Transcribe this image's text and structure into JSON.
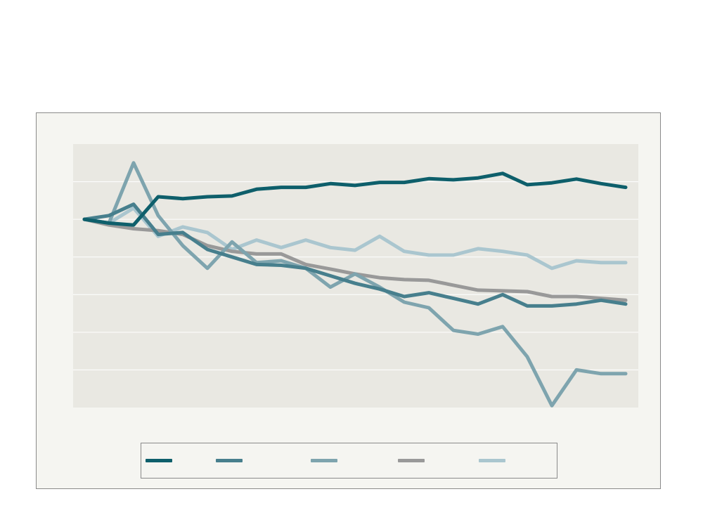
{
  "chart_data": {
    "type": "line",
    "title": "",
    "xlabel": "",
    "ylabel": "",
    "ylim": [
      -5,
      2
    ],
    "grid": true,
    "legend_placement": "bottom",
    "x": [
      1,
      2,
      3,
      4,
      5,
      6,
      7,
      8,
      9,
      10,
      11,
      12,
      13,
      14,
      15,
      16,
      17,
      18,
      19,
      20,
      21,
      22,
      23
    ],
    "series": [
      {
        "name": "",
        "color": "#0e5f6b",
        "values": [
          0.0,
          -0.1,
          -0.15,
          0.6,
          0.55,
          0.6,
          0.62,
          0.8,
          0.85,
          0.85,
          0.95,
          0.9,
          0.98,
          0.98,
          1.08,
          1.05,
          1.1,
          1.22,
          0.92,
          0.97,
          1.07,
          0.95,
          0.85
        ]
      },
      {
        "name": "",
        "color": "#477f8d",
        "values": [
          0.0,
          0.1,
          0.4,
          -0.4,
          -0.35,
          -0.8,
          -1.0,
          -1.2,
          -1.22,
          -1.3,
          -1.5,
          -1.7,
          -1.85,
          -2.05,
          -1.95,
          -2.1,
          -2.25,
          -2.0,
          -2.3,
          -2.3,
          -2.25,
          -2.15,
          -2.25
        ]
      },
      {
        "name": "",
        "color": "#7ea4ae",
        "values": [
          0.0,
          -0.1,
          1.5,
          0.1,
          -0.7,
          -1.3,
          -0.6,
          -1.15,
          -1.1,
          -1.3,
          -1.8,
          -1.45,
          -1.8,
          -2.2,
          -2.35,
          -2.95,
          -3.05,
          -2.85,
          -3.65,
          -4.95,
          -4.0,
          -4.1,
          -4.1
        ]
      },
      {
        "name": "",
        "color": "#999999",
        "values": [
          0.0,
          -0.15,
          -0.25,
          -0.3,
          -0.4,
          -0.7,
          -0.85,
          -0.92,
          -0.92,
          -1.2,
          -1.32,
          -1.45,
          -1.55,
          -1.6,
          -1.62,
          -1.75,
          -1.88,
          -1.9,
          -1.92,
          -2.05,
          -2.05,
          -2.1,
          -2.15
        ]
      },
      {
        "name": "",
        "color": "#aac6cf",
        "values": [
          0.0,
          -0.1,
          0.3,
          -0.45,
          -0.2,
          -0.35,
          -0.8,
          -0.55,
          -0.75,
          -0.55,
          -0.75,
          -0.82,
          -0.45,
          -0.85,
          -0.95,
          -0.95,
          -0.78,
          -0.85,
          -0.95,
          -1.3,
          -1.1,
          -1.15,
          -1.15
        ]
      }
    ]
  }
}
